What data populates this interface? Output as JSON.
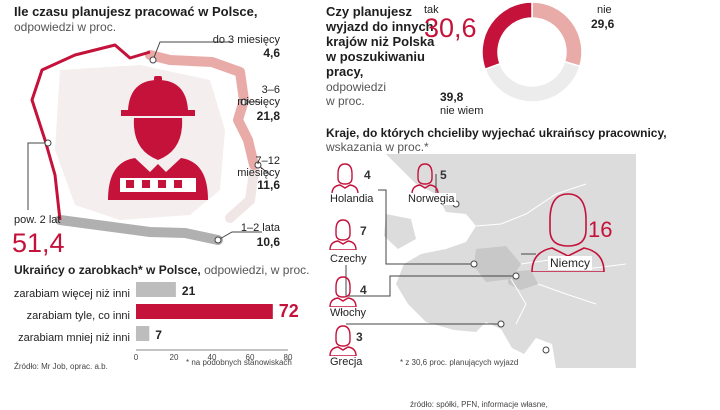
{
  "stay_section": {
    "title": "Ile czasu planujesz pracować w Polsce,",
    "subtitle": "odpowiedzi w proc.",
    "items": [
      {
        "label": "do 3 miesięcy",
        "value": "4,6"
      },
      {
        "label": "3–6 miesięcy",
        "value": "21,8"
      },
      {
        "label": "7–12 miesięcy",
        "value": "11,6"
      },
      {
        "label": "1–2 lata",
        "value": "10,6"
      },
      {
        "label": "pow. 2 lat",
        "value": "51,4"
      }
    ],
    "colors": {
      "accent": "#c4123b",
      "pink": "#e9aba8",
      "light": "#f1e6e6",
      "gray": "#b0b0b0"
    }
  },
  "earnings_section": {
    "title": "Ukraińcy o zarobkach* w Polsce,",
    "subtitle": "odpowiedzi, w proc.",
    "footnote": "* na podobnych stanowiskach",
    "source": "Źródło: Mr Job, oprac. a.b."
  },
  "chart_data": [
    {
      "type": "bar",
      "orientation": "horizontal",
      "categories": [
        "zarabiam więcej niż inni",
        "zarabiam tyle, co inni",
        "zarabiam mniej  niż inni"
      ],
      "values": [
        21,
        72,
        7
      ],
      "value_labels": [
        "21",
        "72",
        "7"
      ],
      "colors": [
        "#bdbdbd",
        "#c4123b",
        "#bdbdbd"
      ],
      "xlim": [
        0,
        80
      ],
      "xticks": [
        "0",
        "20",
        "40",
        "60",
        "80"
      ]
    },
    {
      "type": "pie",
      "categories": [
        "tak",
        "nie",
        "nie wiem"
      ],
      "values": [
        30.6,
        29.6,
        39.8
      ],
      "value_labels": [
        "30,6",
        "29,6",
        "39,8"
      ],
      "colors": [
        "#c4123b",
        "#e9aba8",
        "#ececec"
      ],
      "donut": true
    }
  ],
  "plans_section": {
    "title_lines": [
      "Czy planujesz",
      "wyjazd do innych",
      "krajów niż Polska",
      "w poszukiwaniu",
      "pracy,"
    ],
    "subtitle_lines": [
      "odpowiedzi",
      "w proc."
    ]
  },
  "countries_section": {
    "title": "Kraje, do których chcieliby wyjechać ukraińscy pracownicy,",
    "subtitle": "wskazania w proc.*",
    "items": [
      {
        "name": "Holandia",
        "value": "4"
      },
      {
        "name": "Norwegia",
        "value": "5"
      },
      {
        "name": "Czechy",
        "value": "7"
      },
      {
        "name": "Niemcy",
        "value": "16"
      },
      {
        "name": "Włochy",
        "value": "4"
      },
      {
        "name": "Grecja",
        "value": "3"
      }
    ],
    "footnote": "* z 30,6 proc. planujących wyjazd",
    "source": "źródło: spółki, PFN, informacje własne,"
  }
}
